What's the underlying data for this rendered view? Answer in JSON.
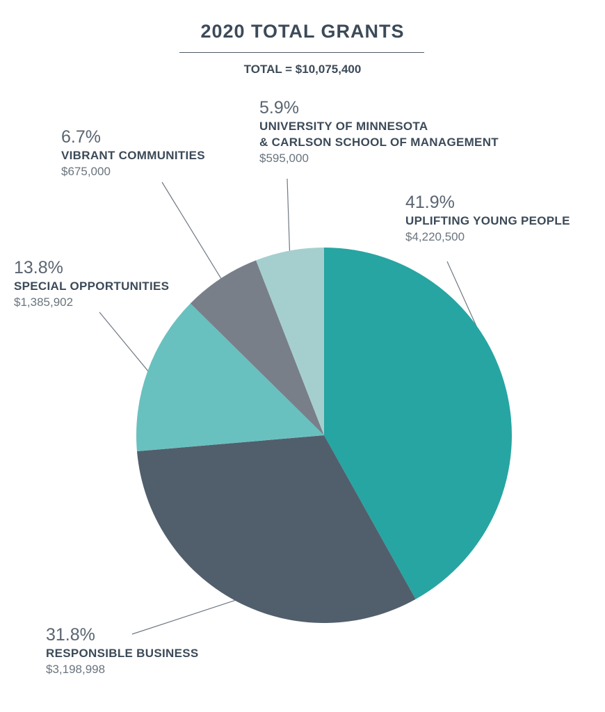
{
  "title": "2020 TOTAL GRANTS",
  "total_label": "TOTAL = $10,075,400",
  "colors": {
    "teal": "#27a5a2",
    "slate": "#515f6c",
    "light_teal": "#68c1bf",
    "gray": "#787f89",
    "pale_teal": "#a5cfce"
  },
  "chart_data": {
    "type": "pie",
    "title": "2020 TOTAL GRANTS",
    "total": "TOTAL = $10,075,400",
    "slices": [
      {
        "name_lines": [
          "UPLIFTING YOUNG PEOPLE"
        ],
        "percent_label": "41.9%",
        "amount_label": "$4,220,500",
        "value": 4220500,
        "color": "#27a5a2"
      },
      {
        "name_lines": [
          "RESPONSIBLE BUSINESS"
        ],
        "percent_label": "31.8%",
        "amount_label": "$3,198,998",
        "value": 3198998,
        "color": "#515f6c"
      },
      {
        "name_lines": [
          "SPECIAL OPPORTUNITIES"
        ],
        "percent_label": "13.8%",
        "amount_label": "$1,385,902",
        "value": 1385902,
        "color": "#68c1bf"
      },
      {
        "name_lines": [
          "VIBRANT COMMUNITIES"
        ],
        "percent_label": "6.7%",
        "amount_label": "$675,000",
        "value": 675000,
        "color": "#787f89"
      },
      {
        "name_lines": [
          "UNIVERSITY OF MINNESOTA",
          "& CARLSON SCHOOL OF MANAGEMENT"
        ],
        "percent_label": "5.9%",
        "amount_label": "$595,000",
        "value": 595000,
        "color": "#a5cfce"
      }
    ]
  }
}
